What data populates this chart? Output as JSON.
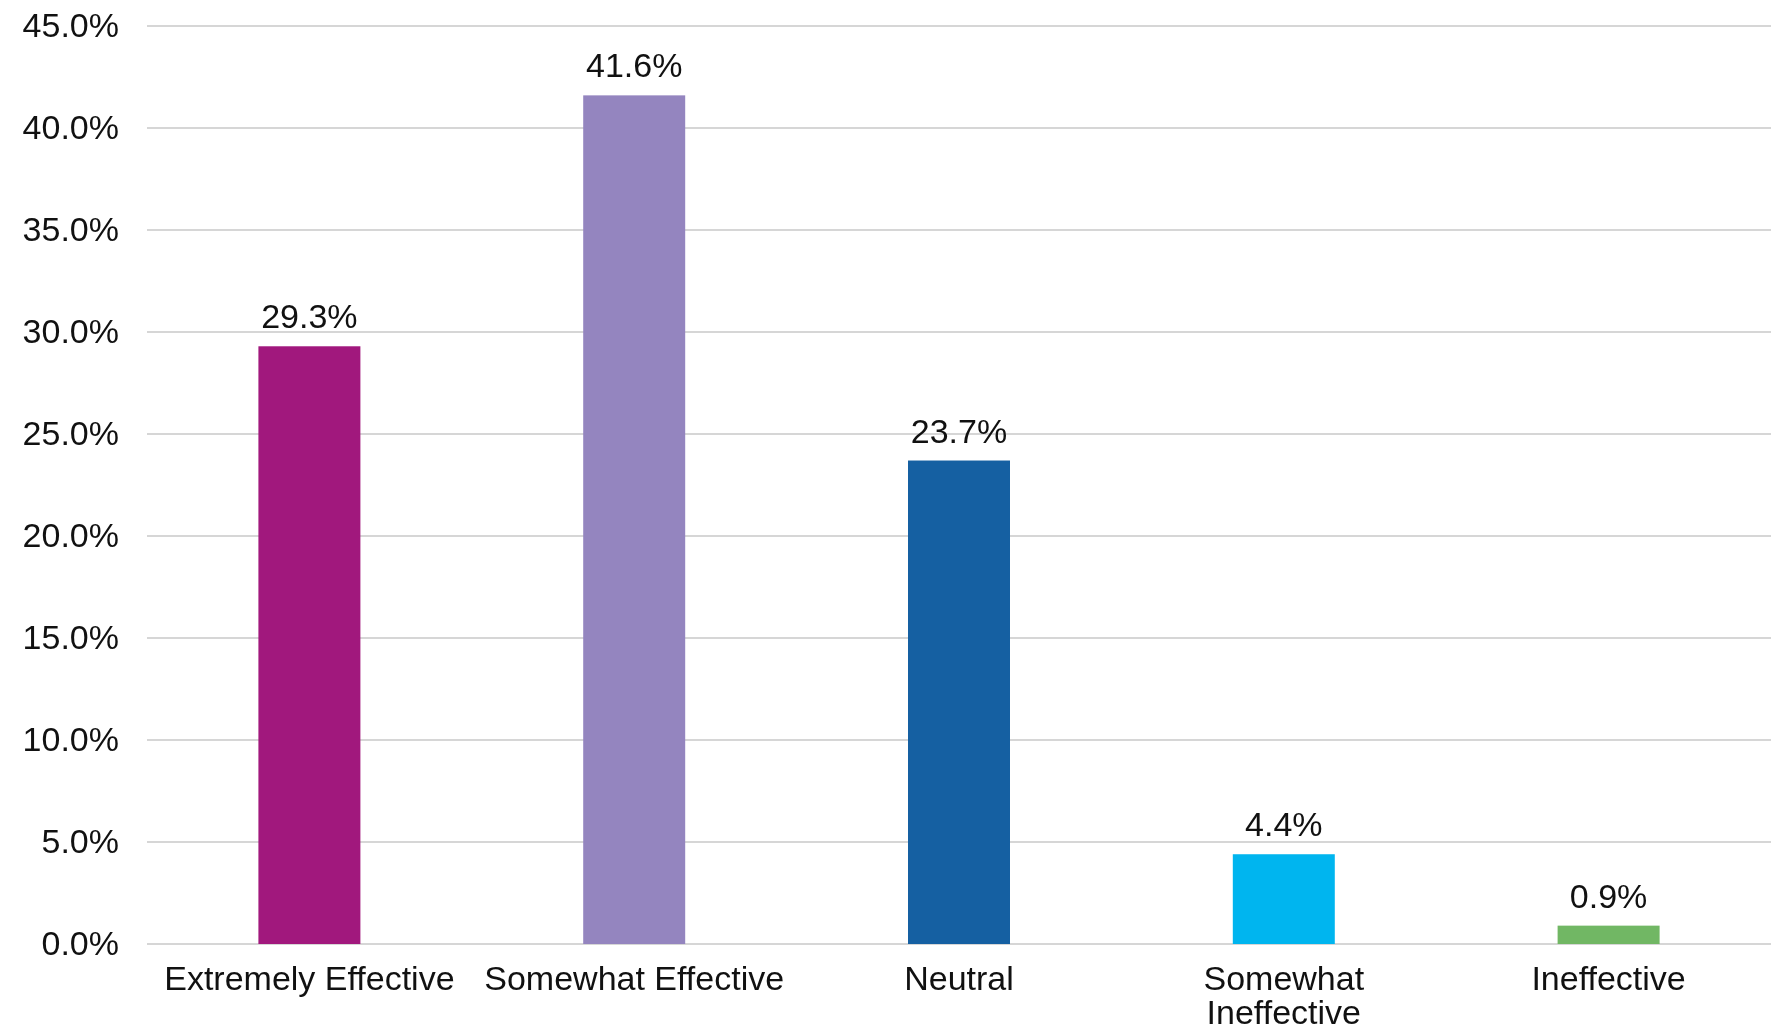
{
  "chart_data": {
    "type": "bar",
    "categories": [
      "Extremely Effective",
      "Somewhat Effective",
      "Neutral",
      "Somewhat Ineffective",
      "Ineffective"
    ],
    "values": [
      29.3,
      41.6,
      23.7,
      4.4,
      0.9
    ],
    "colors": [
      "#a1187d",
      "#9485bf",
      "#1560a2",
      "#00b5ef",
      "#71b764"
    ],
    "value_labels": [
      "29.3%",
      "41.6%",
      "23.7%",
      "4.4%",
      "0.9%"
    ],
    "ylim": [
      0,
      45
    ],
    "yticks": [
      {
        "value": 0,
        "label": "0.0%"
      },
      {
        "value": 5,
        "label": "5.0%"
      },
      {
        "value": 10,
        "label": "10.0%"
      },
      {
        "value": 15,
        "label": "15.0%"
      },
      {
        "value": 20,
        "label": "20.0%"
      },
      {
        "value": 25,
        "label": "25.0%"
      },
      {
        "value": 30,
        "label": "30.0%"
      },
      {
        "value": 35,
        "label": "35.0%"
      },
      {
        "value": 40,
        "label": "40.0%"
      },
      {
        "value": 45,
        "label": "45.0%"
      }
    ],
    "grid": "y"
  }
}
